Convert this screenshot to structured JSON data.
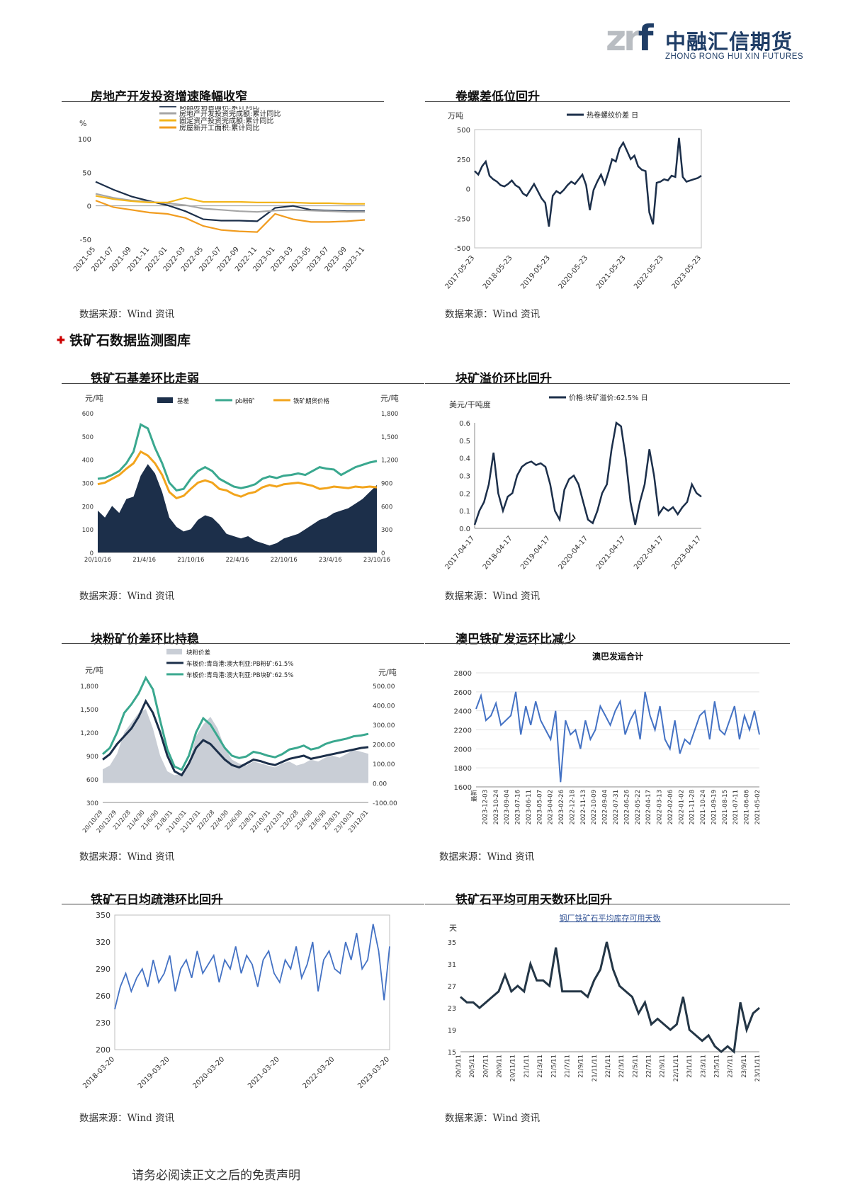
{
  "header": {
    "logo_mark": "znf",
    "logo_cn": "中融汇信期货",
    "logo_en": "ZHONG RONG HUI XIN FUTURES"
  },
  "section_heading": "铁矿石数据监测图库",
  "footer": "请务必阅读正文之后的免责声明",
  "panels": [
    {
      "title": "房地产开发投资增速降幅收窄",
      "source": "数据来源：Wind 资讯"
    },
    {
      "title": "卷螺差低位回升",
      "source": "数据来源：Wind 资讯"
    },
    {
      "title": "铁矿石基差环比走弱",
      "source": "数据来源：Wind 资讯"
    },
    {
      "title": "块矿溢价环比回升",
      "source": "数据来源：Wind 资讯"
    },
    {
      "title": "块粉矿价差环比持稳",
      "source": "数据来源：Wind 资讯"
    },
    {
      "title": "澳巴铁矿发运环比减少",
      "source": "数据来源：Wind 资讯"
    },
    {
      "title": "铁矿石日均疏港环比回升",
      "source": "数据来源：Wind 资讯"
    },
    {
      "title": "铁矿石平均可用天数环比回升",
      "source": "数据来源：Wind 资讯"
    }
  ],
  "chart_data": [
    {
      "type": "line",
      "title": "",
      "ylabel": "%",
      "ylim": [
        -50,
        100
      ],
      "yticks": [
        "100",
        "50",
        "0",
        "-50"
      ],
      "x": [
        "2021-05",
        "2021-07",
        "2021-09",
        "2021-11",
        "2022-01",
        "2022-03",
        "2022-05",
        "2022-07",
        "2022-09",
        "2022-11",
        "2023-01",
        "2023-03",
        "2023-05",
        "2023-07",
        "2023-09",
        "2023-11"
      ],
      "legend_position": "top",
      "colors": [
        "#1c2f4a",
        "#a6a6a6",
        "#f3b51b",
        "#f19c1f"
      ],
      "series": [
        {
          "name": "商品房销售面积:累计同比",
          "values": [
            36,
            24,
            14,
            7,
            1,
            -8,
            -20,
            -22,
            -22,
            -23,
            -3,
            0,
            -6,
            -7,
            -8,
            -8
          ]
        },
        {
          "name": "房地产开发投资完成额:累计同比",
          "values": [
            18,
            12,
            8,
            6,
            4,
            1,
            -4,
            -6,
            -8,
            -9,
            -7,
            -6,
            -7,
            -8,
            -9,
            -9
          ]
        },
        {
          "name": "固定资产投资完成额:累计同比",
          "values": [
            15,
            10,
            7,
            5,
            5,
            12,
            6,
            6,
            6,
            5,
            5,
            5,
            4,
            4,
            3,
            3
          ]
        },
        {
          "name": "房屋新开工面积:累计同比",
          "values": [
            8,
            -2,
            -6,
            -10,
            -12,
            -18,
            -30,
            -36,
            -38,
            -39,
            -12,
            -20,
            -24,
            -24,
            -23,
            -21
          ]
        }
      ]
    },
    {
      "type": "line",
      "title": "",
      "ylabel": "万吨",
      "ylim": [
        -500,
        500
      ],
      "yticks": [
        "500",
        "250",
        "0",
        "-250",
        "-500"
      ],
      "xticks": [
        "2017-05-23",
        "2018-05-23",
        "2019-05-23",
        "2020-05-23",
        "2021-05-23",
        "2022-05-23",
        "2023-05-23"
      ],
      "legend_position": "top",
      "series": [
        {
          "name": "热卷螺纹价差 日",
          "color": "#1c2f4a",
          "values": [
            150,
            120,
            190,
            230,
            110,
            80,
            60,
            30,
            20,
            40,
            70,
            30,
            10,
            -40,
            -60,
            -10,
            40,
            -20,
            -80,
            -120,
            -320,
            -60,
            -20,
            -40,
            -10,
            30,
            60,
            40,
            80,
            120,
            30,
            -180,
            -10,
            60,
            120,
            40,
            140,
            250,
            230,
            340,
            390,
            320,
            250,
            280,
            190,
            160,
            150,
            -200,
            -300,
            50,
            60,
            80,
            70,
            110,
            100,
            430,
            100,
            60,
            70,
            80,
            90,
            110
          ]
        }
      ]
    },
    {
      "type": "area",
      "title": "",
      "ylabel": "元/吨",
      "y2label": "元/吨",
      "ylim": [
        0,
        600
      ],
      "y2lim": [
        0,
        1800
      ],
      "yticks": [
        "600",
        "500",
        "400",
        "300",
        "200",
        "100",
        "0"
      ],
      "y2ticks": [
        "1,800",
        "1,500",
        "1,200",
        "900",
        "600",
        "300",
        "0"
      ],
      "xticks": [
        "20/10/16",
        "21/4/16",
        "21/10/16",
        "22/4/16",
        "22/10/16",
        "23/4/16",
        "23/10/16"
      ],
      "legend_position": "top",
      "series": [
        {
          "name": "基差",
          "color": "#1c2f4a",
          "axis": "left",
          "values": [
            180,
            150,
            200,
            170,
            230,
            240,
            330,
            380,
            340,
            260,
            150,
            110,
            90,
            100,
            140,
            160,
            150,
            120,
            80,
            70,
            60,
            70,
            50,
            40,
            30,
            40,
            60,
            70,
            80,
            100,
            120,
            140,
            150,
            170,
            180,
            190,
            210,
            230,
            260,
            290
          ]
        },
        {
          "name": "pb粉矿",
          "color": "#3aa88f",
          "axis": "right",
          "values": [
            950,
            960,
            1000,
            1050,
            1150,
            1300,
            1650,
            1600,
            1350,
            1150,
            900,
            800,
            820,
            950,
            1050,
            1100,
            1050,
            950,
            900,
            850,
            830,
            850,
            880,
            950,
            980,
            960,
            990,
            1000,
            1020,
            1000,
            1050,
            1100,
            1080,
            1070,
            1000,
            1050,
            1100,
            1130,
            1160,
            1180
          ]
        },
        {
          "name": "铁矿期货价格",
          "color": "#f2a41c",
          "axis": "right",
          "values": [
            880,
            900,
            950,
            1000,
            1080,
            1150,
            1300,
            1250,
            1150,
            1000,
            780,
            700,
            730,
            820,
            900,
            930,
            900,
            820,
            800,
            750,
            720,
            760,
            780,
            840,
            870,
            850,
            880,
            890,
            900,
            880,
            860,
            820,
            830,
            850,
            840,
            830,
            850,
            840,
            850,
            840
          ]
        }
      ]
    },
    {
      "type": "line",
      "title": "",
      "ylabel": "美元/干吨度",
      "ylim": [
        0,
        0.6
      ],
      "yticks": [
        "0.6",
        "0.5",
        "0.4",
        "0.3",
        "0.2",
        "0.1",
        "0.0"
      ],
      "xticks": [
        "2017-04-17",
        "2018-04-17",
        "2019-04-17",
        "2020-04-17",
        "2021-04-17",
        "2022-04-17",
        "2023-04-17"
      ],
      "legend_position": "top",
      "series": [
        {
          "name": "价格:块矿溢价:62.5% 日",
          "color": "#1c2f4a",
          "values": [
            0.02,
            0.1,
            0.15,
            0.25,
            0.43,
            0.2,
            0.1,
            0.18,
            0.2,
            0.3,
            0.35,
            0.37,
            0.38,
            0.36,
            0.37,
            0.35,
            0.25,
            0.1,
            0.05,
            0.22,
            0.28,
            0.3,
            0.25,
            0.15,
            0.05,
            0.03,
            0.1,
            0.2,
            0.25,
            0.45,
            0.6,
            0.58,
            0.4,
            0.15,
            0.02,
            0.15,
            0.25,
            0.45,
            0.3,
            0.08,
            0.12,
            0.1,
            0.12,
            0.08,
            0.12,
            0.15,
            0.25,
            0.2,
            0.18
          ]
        }
      ]
    },
    {
      "type": "area",
      "title": "",
      "ylabel": "元/吨",
      "y2label": "元/吨",
      "ylim": [
        300,
        1800
      ],
      "y2lim": [
        -100,
        500
      ],
      "yticks": [
        "1,800",
        "1,500",
        "1,200",
        "900",
        "600",
        "300"
      ],
      "y2ticks": [
        "500.00",
        "400.00",
        "300.00",
        "200.00",
        "100.00",
        "0.00",
        "-100.00"
      ],
      "xticks": [
        "20/10/29",
        "20/12/29",
        "21/2/28",
        "21/4/30",
        "21/6/30",
        "21/8/31",
        "21/10/31",
        "21/12/31",
        "22/2/28",
        "22/4/30",
        "22/6/30",
        "22/8/31",
        "22/10/31",
        "22/12/31",
        "23/2/28",
        "23/4/30",
        "23/6/30",
        "23/8/31",
        "23/10/31",
        "23/12/31"
      ],
      "legend_position": "top-left",
      "series": [
        {
          "name": "块粉价差",
          "color": "#c9ced6",
          "axis": "right",
          "values": [
            70,
            90,
            150,
            260,
            310,
            360,
            380,
            280,
            140,
            60,
            40,
            50,
            100,
            240,
            300,
            340,
            280,
            180,
            120,
            100,
            90,
            110,
            100,
            90,
            80,
            100,
            110,
            90,
            100,
            120,
            110,
            130,
            140,
            130,
            150,
            170,
            160,
            150
          ]
        },
        {
          "name": "车板价:青岛港:澳大利亚:PB粉矿:61.5%",
          "color": "#1c2f4a",
          "axis": "left",
          "values": [
            850,
            920,
            1050,
            1150,
            1250,
            1400,
            1600,
            1450,
            1200,
            900,
            700,
            650,
            800,
            1000,
            1100,
            1050,
            950,
            850,
            780,
            750,
            800,
            850,
            830,
            800,
            780,
            820,
            860,
            880,
            900,
            860,
            880,
            900,
            920,
            940,
            960,
            980,
            1000,
            1010
          ]
        },
        {
          "name": "车板价:青岛港:澳大利亚:PB块矿:62.5%",
          "color": "#3aa88f",
          "axis": "left",
          "values": [
            920,
            1000,
            1200,
            1450,
            1560,
            1700,
            1900,
            1750,
            1350,
            980,
            760,
            720,
            900,
            1200,
            1380,
            1300,
            1150,
            1000,
            900,
            870,
            890,
            950,
            930,
            900,
            880,
            920,
            980,
            1000,
            1030,
            980,
            1000,
            1050,
            1080,
            1100,
            1120,
            1150,
            1160,
            1180
          ]
        }
      ]
    },
    {
      "type": "line",
      "title": "澳巴发运合计",
      "ylim": [
        1600,
        2800
      ],
      "yticks": [
        "2800",
        "2600",
        "2400",
        "2200",
        "2000",
        "1800",
        "1600"
      ],
      "xticks": [
        "最新",
        "2023-12-03",
        "2023-10-24",
        "2023-09-04",
        "2023-07-16",
        "2023-06-11",
        "2023-05-07",
        "2023-04-02",
        "2023-02-26",
        "2022-12-18",
        "2022-11-13",
        "2022-10-09",
        "2022-09-04",
        "2022-07-31",
        "2022-06-26",
        "2022-05-22",
        "2022-04-17",
        "2022-03-13",
        "2022-02-06",
        "2022-01-02",
        "2021-11-28",
        "2021-10-24",
        "2021-09-19",
        "2021-08-15",
        "2021-07-11",
        "2021-06-06",
        "2021-05-02"
      ],
      "series": [
        {
          "name": "澳巴发运合计",
          "color": "#4472c4",
          "values": [
            2420,
            2560,
            2300,
            2350,
            2480,
            2250,
            2300,
            2350,
            2600,
            2150,
            2450,
            2250,
            2500,
            2300,
            2200,
            2100,
            2400,
            1650,
            2300,
            2150,
            2200,
            2000,
            2300,
            2100,
            2200,
            2450,
            2350,
            2250,
            2400,
            2500,
            2150,
            2300,
            2400,
            2100,
            2600,
            2350,
            2200,
            2450,
            2100,
            2000,
            2300,
            1950,
            2100,
            2050,
            2200,
            2350,
            2400,
            2100,
            2500,
            2200,
            2150,
            2300,
            2450,
            2100,
            2350,
            2200,
            2400,
            2150
          ]
        }
      ]
    },
    {
      "type": "line",
      "title": "",
      "ylim": [
        200,
        350
      ],
      "yticks": [
        "350",
        "320",
        "290",
        "260",
        "230",
        "200"
      ],
      "xticks": [
        "2018-03-20",
        "2019-03-20",
        "2020-03-20",
        "2021-03-20",
        "2022-03-20",
        "2023-03-20"
      ],
      "series": [
        {
          "name": "日均疏港",
          "color": "#4472c4",
          "values": [
            245,
            270,
            285,
            265,
            280,
            290,
            270,
            300,
            275,
            285,
            305,
            265,
            290,
            300,
            280,
            310,
            285,
            295,
            305,
            275,
            300,
            290,
            315,
            285,
            305,
            295,
            270,
            300,
            310,
            285,
            275,
            300,
            290,
            315,
            280,
            295,
            320,
            265,
            300,
            310,
            290,
            285,
            320,
            300,
            330,
            290,
            300,
            340,
            310,
            255,
            315
          ]
        }
      ]
    },
    {
      "type": "line",
      "title": "钢厂铁矿石平均库存可用天数",
      "ylabel": "天",
      "ylim": [
        15,
        35
      ],
      "yticks": [
        "35",
        "31",
        "27",
        "23",
        "19",
        "15"
      ],
      "xticks": [
        "20/3/11",
        "20/5/11",
        "20/7/11",
        "20/9/11",
        "20/11/11",
        "21/1/11",
        "21/3/11",
        "21/5/11",
        "21/7/11",
        "21/9/11",
        "21/11/11",
        "22/1/11",
        "22/3/11",
        "22/5/11",
        "22/7/11",
        "22/9/11",
        "22/11/11",
        "23/1/11",
        "23/3/11",
        "23/5/11",
        "23/7/11",
        "23/9/11",
        "23/11/11"
      ],
      "series": [
        {
          "name": "钢厂铁矿石平均库存可用天数",
          "color": "#243646",
          "values": [
            25,
            24,
            24,
            23,
            24,
            25,
            26,
            29,
            26,
            27,
            26,
            31,
            28,
            28,
            27,
            34,
            26,
            26,
            26,
            26,
            25,
            28,
            30,
            35,
            30,
            27,
            26,
            25,
            22,
            24,
            20,
            21,
            20,
            19,
            20,
            25,
            19,
            18,
            17,
            18,
            16,
            15,
            16,
            15,
            24,
            19,
            22,
            23
          ]
        }
      ]
    }
  ]
}
